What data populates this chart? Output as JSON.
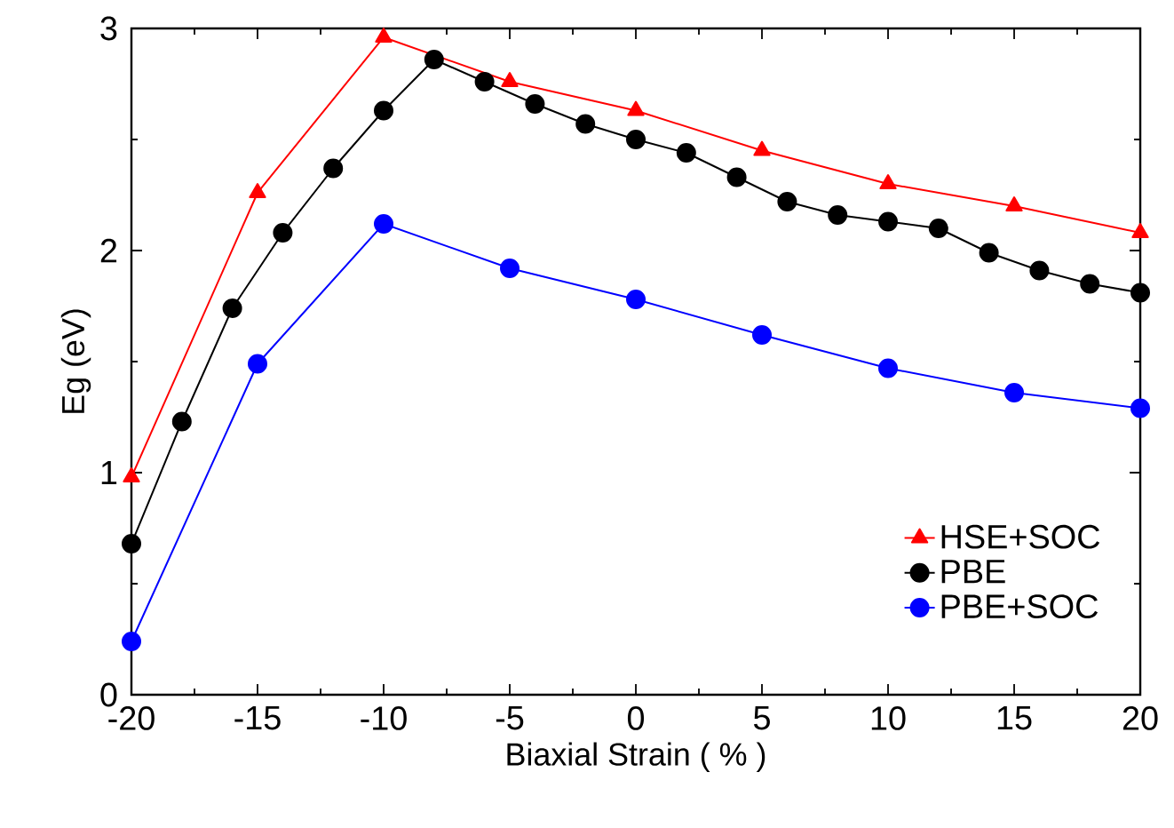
{
  "chart_data": {
    "type": "line",
    "xlabel": "Biaxial Strain ( % )",
    "ylabel": "Eg (eV)",
    "xlim": [
      -20,
      20
    ],
    "ylim": [
      0,
      3
    ],
    "xticks": [
      -20,
      -15,
      -10,
      -5,
      0,
      5,
      10,
      15,
      20
    ],
    "yticks": [
      0,
      1,
      2,
      3
    ],
    "grid": false,
    "legend": "bottom right",
    "series": [
      {
        "name": "HSE+SOC",
        "color": "#ff0000",
        "marker": "triangle",
        "x": [
          -20,
          -15,
          -10,
          -5,
          0,
          5,
          10,
          15,
          20
        ],
        "values": [
          0.98,
          2.26,
          2.96,
          2.76,
          2.63,
          2.45,
          2.3,
          2.2,
          2.08
        ]
      },
      {
        "name": "PBE",
        "color": "#000000",
        "marker": "circle",
        "x": [
          -20,
          -18,
          -16,
          -14,
          -12,
          -10,
          -8,
          -6,
          -4,
          -2,
          0,
          2,
          4,
          6,
          8,
          10,
          12,
          14,
          16,
          18,
          20
        ],
        "values": [
          0.68,
          1.23,
          1.74,
          2.08,
          2.37,
          2.63,
          2.86,
          2.76,
          2.66,
          2.57,
          2.5,
          2.44,
          2.33,
          2.22,
          2.16,
          2.13,
          2.1,
          1.99,
          1.91,
          1.85,
          1.81
        ]
      },
      {
        "name": "PBE+SOC",
        "color": "#0000ff",
        "marker": "circle",
        "x": [
          -20,
          -15,
          -10,
          -5,
          0,
          5,
          10,
          15,
          20
        ],
        "values": [
          0.24,
          1.49,
          2.12,
          1.92,
          1.78,
          1.62,
          1.47,
          1.36,
          1.29
        ]
      }
    ]
  }
}
